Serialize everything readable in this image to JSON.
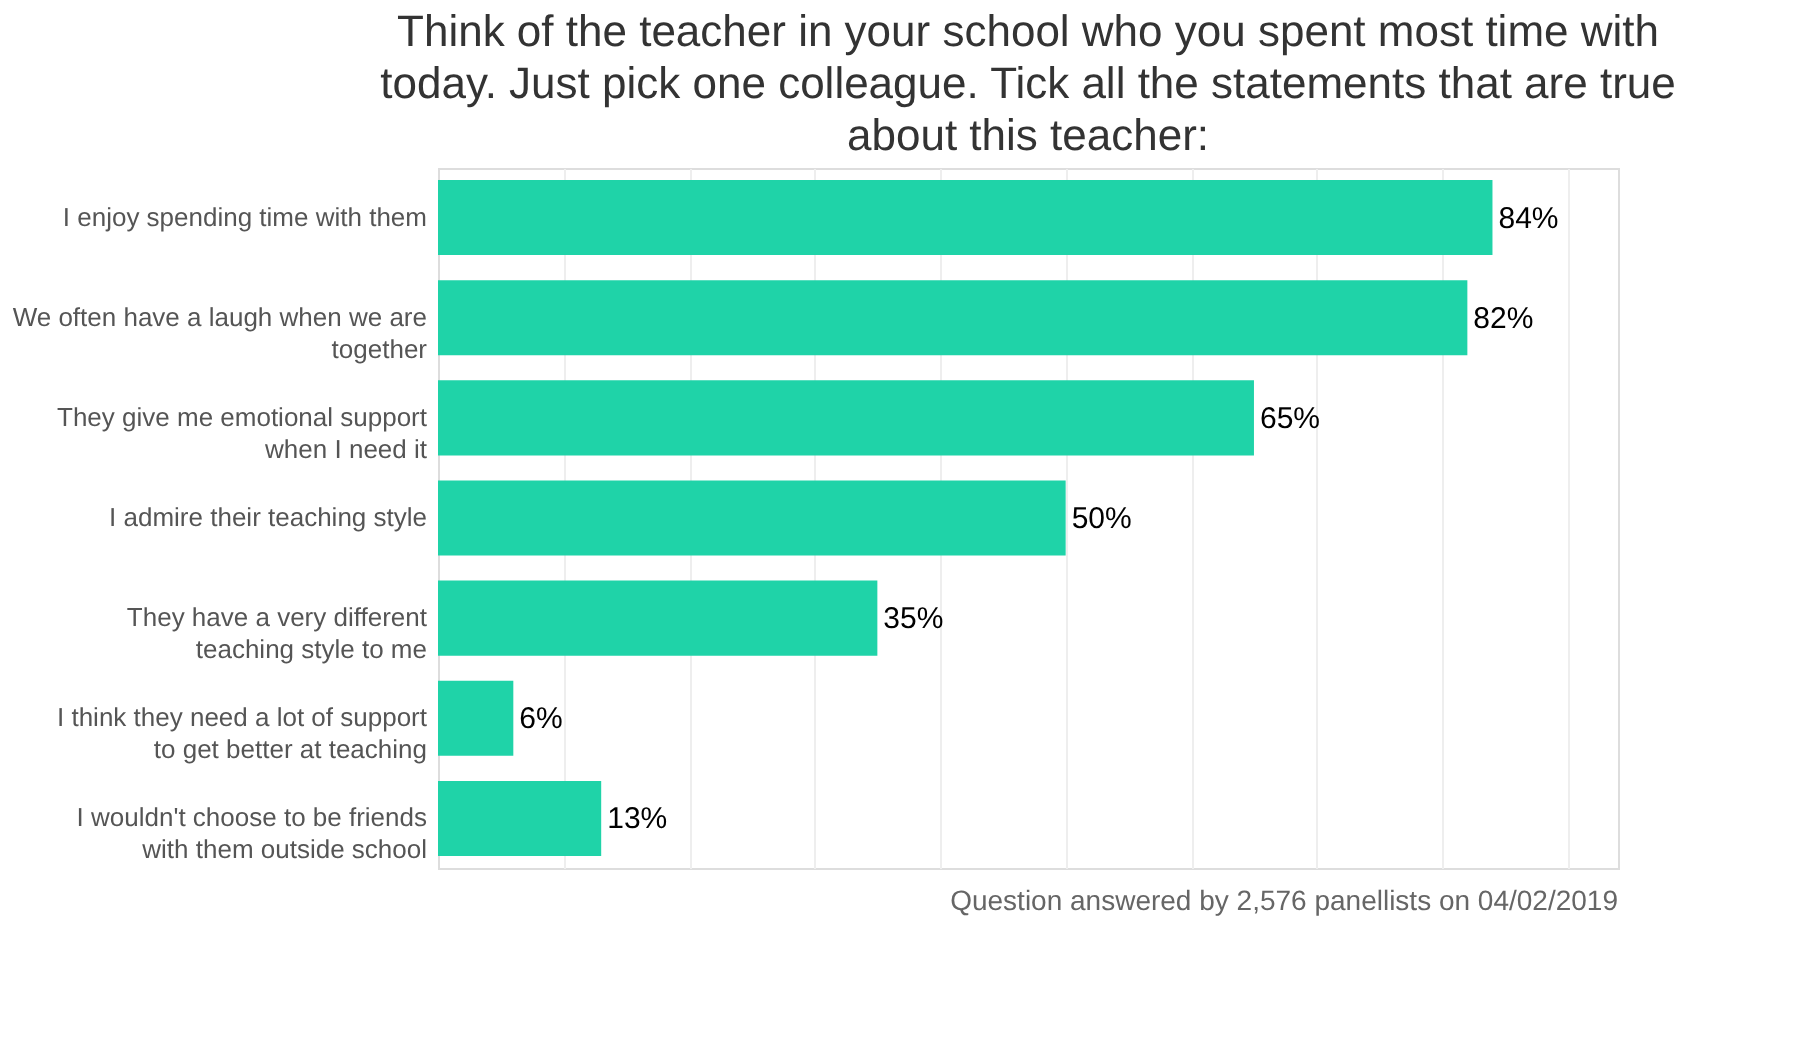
{
  "chart_data": {
    "type": "bar",
    "orientation": "horizontal",
    "title": "Think of the teacher in your school who you spent most time with today. Just pick one colleague. Tick all the statements that are true about this teacher:",
    "categories": [
      "I enjoy spending time with them",
      "We often have a laugh when we are together",
      "They give me emotional support when I need it",
      "I admire their teaching style",
      "They have a very different teaching style to me",
      "I think they need a lot of support to get better at teaching",
      "I wouldn't choose to be friends with them outside school"
    ],
    "values": [
      84,
      82,
      65,
      50,
      35,
      6,
      13
    ],
    "value_labels": [
      "84%",
      "82%",
      "65%",
      "50%",
      "35%",
      "6%",
      "13%"
    ],
    "color": "#1fd3a8",
    "xlim": [
      0,
      94
    ],
    "xticks": [
      {
        "value": 10,
        "label": null
      },
      {
        "value": 20,
        "label": null
      },
      {
        "value": 30,
        "label": null
      },
      {
        "value": 40,
        "label": null
      },
      {
        "value": 50,
        "label": null
      },
      {
        "value": 60,
        "label": null
      },
      {
        "value": 70,
        "label": null
      },
      {
        "value": 80,
        "label": null
      },
      {
        "value": 90,
        "label": null
      }
    ],
    "grid": "x",
    "tick_labels": "y",
    "annotations": [
      "Question answered by 2,576 panellists on 04/02/2019"
    ]
  }
}
